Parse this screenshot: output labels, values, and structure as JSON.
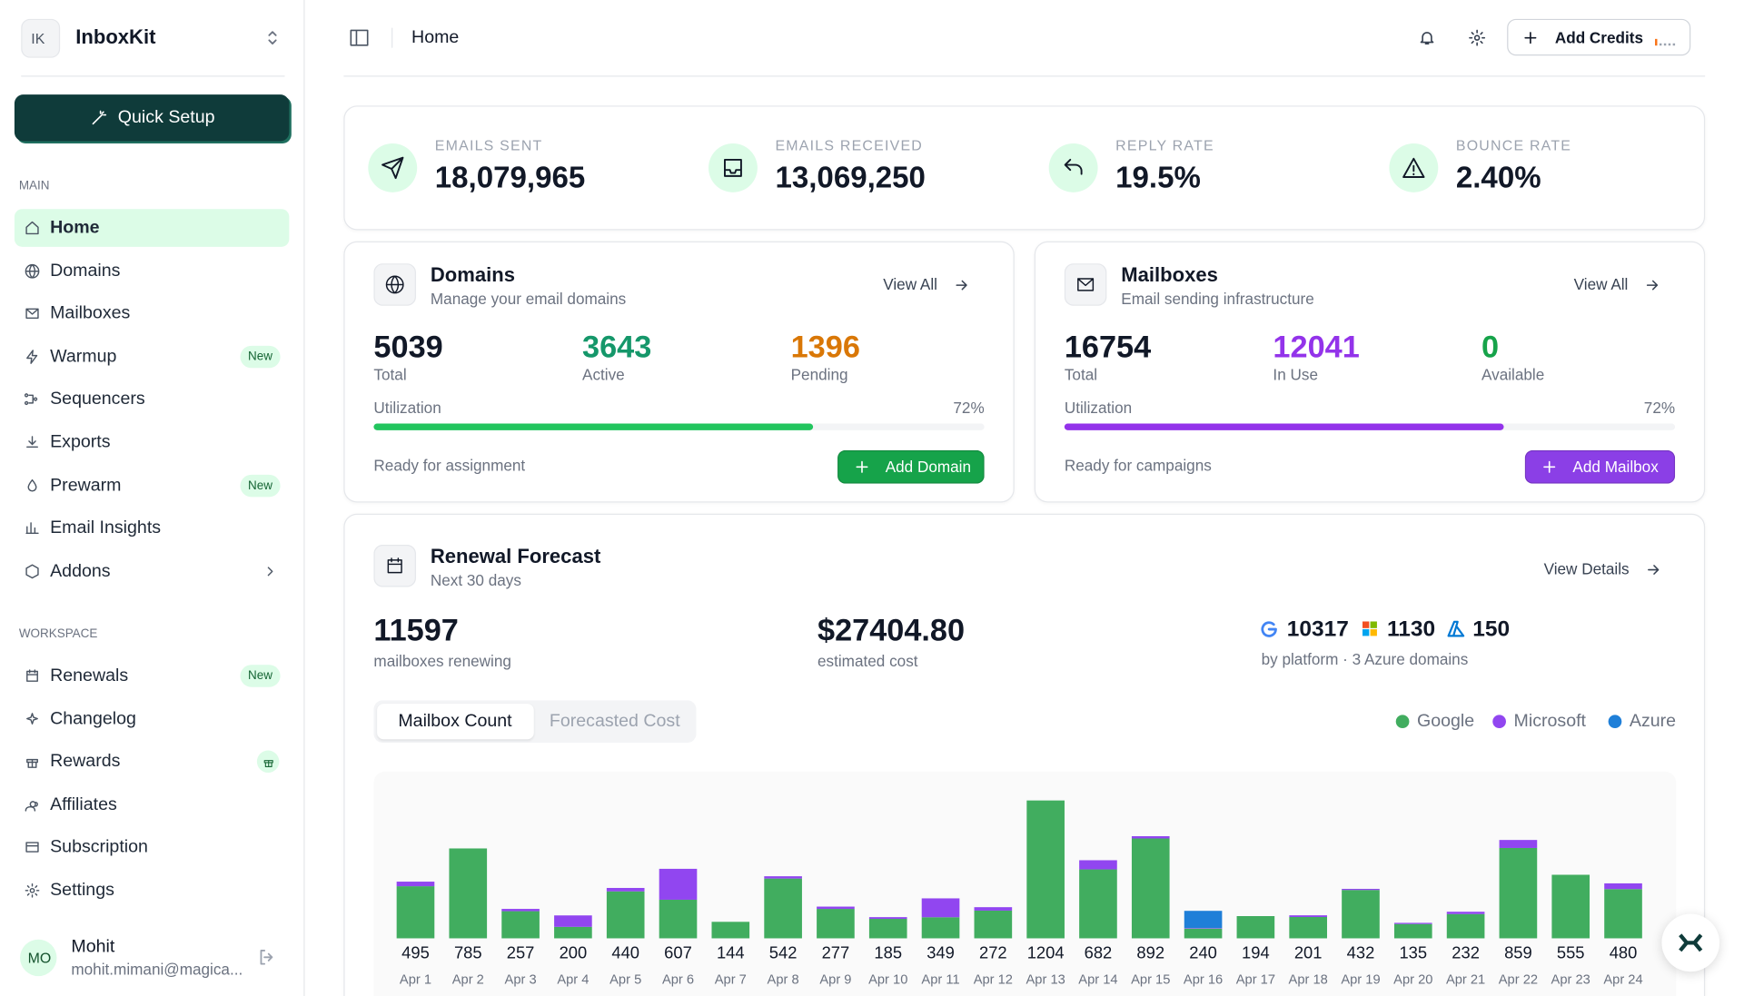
{
  "sidebar": {
    "logo_initials": "IK",
    "workspace": "InboxKit",
    "quick_setup": "Quick Setup",
    "nav": [
      {
        "heading": "MAIN",
        "items": [
          {
            "label": "Home"
          },
          {
            "label": "Domains"
          },
          {
            "label": "Mailboxes"
          },
          {
            "label": "Warmup",
            "badge": "New"
          },
          {
            "label": "Sequencers"
          },
          {
            "label": "Exports"
          },
          {
            "label": "Prewarm",
            "badge": "New"
          },
          {
            "label": "Email Insights"
          },
          {
            "label": "Addons"
          }
        ]
      },
      {
        "heading": "WORKSPACE",
        "items": [
          {
            "label": "Renewals",
            "badge": "New"
          },
          {
            "label": "Changelog"
          },
          {
            "label": "Rewards"
          },
          {
            "label": "Affiliates"
          },
          {
            "label": "Subscription"
          },
          {
            "label": "Settings"
          }
        ]
      }
    ],
    "user": {
      "initials": "MO",
      "name": "Mohit",
      "email": "mohit.mimani@magica..."
    }
  },
  "header": {
    "title": "Home",
    "add_credits": "Add Credits"
  },
  "stats": [
    {
      "label": "EMAILS SENT",
      "value": "18,079,965"
    },
    {
      "label": "EMAILS RECEIVED",
      "value": "13,069,250"
    },
    {
      "label": "REPLY RATE",
      "value": "19.5%"
    },
    {
      "label": "BOUNCE RATE",
      "value": "2.40%"
    }
  ],
  "domains": {
    "title": "Domains",
    "subtitle": "Manage your email domains",
    "view_all": "View All",
    "metrics": [
      {
        "value": 5039,
        "label": "Total"
      },
      {
        "value": 3643,
        "label": "Active"
      },
      {
        "value": 1396,
        "label": "Pending"
      }
    ],
    "utilization_title": "Utilization",
    "utilization": {
      "value": 72,
      "label": "72%"
    },
    "status": "Ready for assignment",
    "action": "Add Domain"
  },
  "mailboxes": {
    "title": "Mailboxes",
    "subtitle": "Email sending infrastructure",
    "view_all": "View All",
    "metrics": [
      {
        "value": 16754,
        "label": "Total"
      },
      {
        "value": 12041,
        "label": "In Use"
      },
      {
        "value": 0,
        "label": "Available"
      }
    ],
    "utilization_title": "Utilization",
    "utilization": {
      "value": 72,
      "label": "72%"
    },
    "status": "Ready for campaigns",
    "action": "Add Mailbox"
  },
  "renewal": {
    "title": "Renewal Forecast",
    "subtitle": "Next 30 days",
    "view_details": "View Details",
    "mailboxes": 11597,
    "mailboxes_label": "mailboxes renewing",
    "cost": "$27404.80",
    "cost_label": "estimated cost",
    "platforms": [
      10317,
      1130,
      150
    ],
    "platform_note": "by platform · 3 Azure domains",
    "tabs": [
      "Mailbox Count",
      "Forecasted Cost"
    ],
    "chart": {
      "type": "bar",
      "stacked": true,
      "categories": [
        "Apr 1",
        "Apr 2",
        "Apr 3",
        "Apr 4",
        "Apr 5",
        "Apr 6",
        "Apr 7",
        "Apr 8",
        "Apr 9",
        "Apr 10",
        "Apr 11",
        "Apr 12",
        "Apr 13",
        "Apr 14",
        "Apr 15",
        "Apr 16",
        "Apr 17",
        "Apr 18",
        "Apr 19",
        "Apr 20",
        "Apr 21",
        "Apr 22",
        "Apr 23",
        "Apr 24"
      ],
      "series": [
        {
          "name": "Google",
          "color": "#41ad5f",
          "values": [
            455,
            785,
            237,
            100,
            410,
            337,
            144,
            522,
            257,
            170,
            184,
            242,
            1204,
            602,
            872,
            85,
            194,
            186,
            422,
            125,
            212,
            789,
            555,
            430
          ]
        },
        {
          "name": "Microsoft",
          "color": "#9146f0",
          "values": [
            40,
            0,
            20,
            100,
            30,
            270,
            0,
            20,
            20,
            15,
            165,
            30,
            0,
            80,
            20,
            5,
            0,
            15,
            10,
            10,
            20,
            70,
            0,
            50
          ]
        },
        {
          "name": "Azure",
          "color": "#1f7fd8",
          "values": [
            0,
            0,
            0,
            0,
            0,
            0,
            0,
            0,
            0,
            0,
            0,
            0,
            0,
            0,
            0,
            150,
            0,
            0,
            0,
            0,
            0,
            0,
            0,
            0
          ]
        }
      ],
      "totals": [
        495,
        785,
        257,
        200,
        440,
        607,
        144,
        542,
        277,
        185,
        349,
        272,
        1204,
        682,
        892,
        240,
        194,
        201,
        432,
        135,
        232,
        859,
        555,
        480
      ]
    }
  }
}
